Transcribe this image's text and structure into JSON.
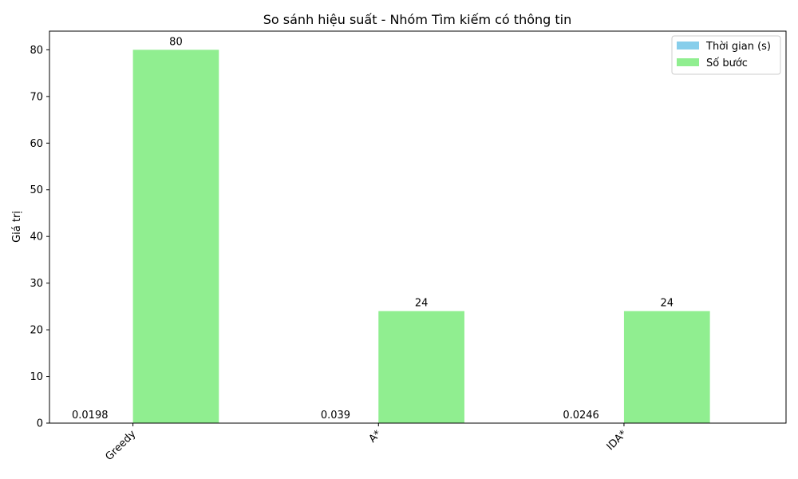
{
  "chart_data": {
    "type": "bar",
    "title": "So sánh hiệu suất - Nhóm Tìm kiếm có thông tin",
    "xlabel": "",
    "ylabel": "Giá trị",
    "categories": [
      "Greedy",
      "A*",
      "IDA*"
    ],
    "series": [
      {
        "name": "Thời gian (s)",
        "values": [
          0.0198,
          0.039,
          0.0246
        ],
        "labels": [
          "0.0198",
          "0.039",
          "0.0246"
        ],
        "color": "#87ceeb"
      },
      {
        "name": "Số bước",
        "values": [
          80,
          24,
          24
        ],
        "labels": [
          "80",
          "24",
          "24"
        ],
        "color": "#90ee90"
      }
    ],
    "ylim": [
      0,
      84
    ],
    "yticks": [
      0,
      10,
      20,
      30,
      40,
      50,
      60,
      70,
      80
    ],
    "ytick_labels": [
      "0",
      "10",
      "20",
      "30",
      "40",
      "50",
      "60",
      "70",
      "80"
    ],
    "xtick_rotation": 45,
    "grid": false,
    "legend": "top-right"
  }
}
